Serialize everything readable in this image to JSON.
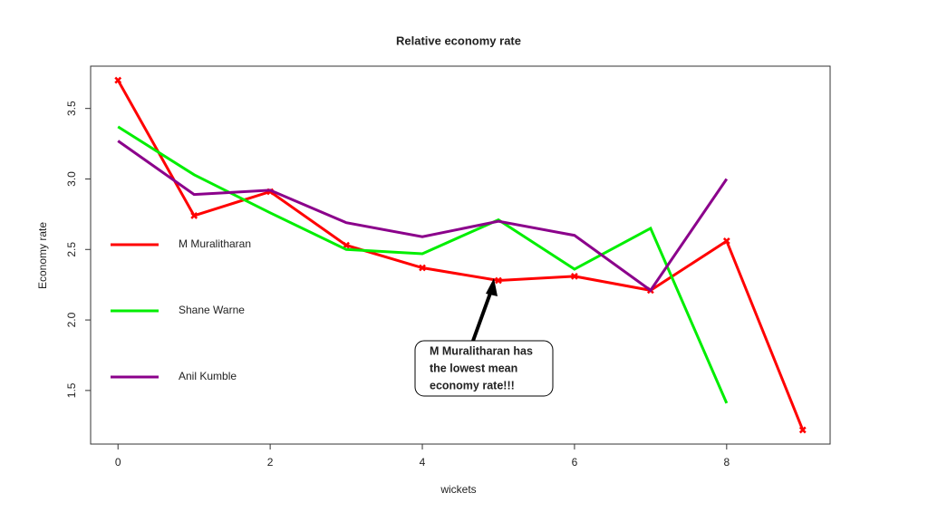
{
  "chart_data": {
    "type": "line",
    "title": "Relative economy rate",
    "xlabel": "wickets",
    "ylabel": "Economy rate",
    "x": [
      0,
      1,
      2,
      3,
      4,
      5,
      6,
      7,
      8,
      9
    ],
    "series": [
      {
        "name": "M Muralitharan",
        "color": "#ff0000",
        "marker": "x",
        "values": [
          3.7,
          2.74,
          2.91,
          2.53,
          2.37,
          2.28,
          2.31,
          2.21,
          2.56,
          1.22
        ]
      },
      {
        "name": "Shane Warne",
        "color": "#00ee00",
        "values": [
          3.37,
          3.03,
          2.76,
          2.5,
          2.47,
          2.71,
          2.36,
          2.65,
          1.41,
          null
        ]
      },
      {
        "name": "Anil Kumble",
        "color": "#8b008b",
        "values": [
          3.27,
          2.89,
          2.92,
          2.69,
          2.59,
          2.7,
          2.6,
          2.21,
          3.0,
          null
        ]
      }
    ],
    "xlim": [
      -0.36,
      9.36
    ],
    "ylim": [
      1.12,
      3.8
    ],
    "xticks": [
      0,
      2,
      4,
      6,
      8
    ],
    "yticks": [
      1.5,
      {
        "value": 2.0,
        "label": "2.0"
      },
      2.5,
      {
        "value": 3.0,
        "label": "3.0"
      },
      3.5
    ],
    "legend": "left",
    "annotation": [
      "M Muralitharan has",
      "the  lowest mean",
      "economy rate!!!"
    ]
  }
}
